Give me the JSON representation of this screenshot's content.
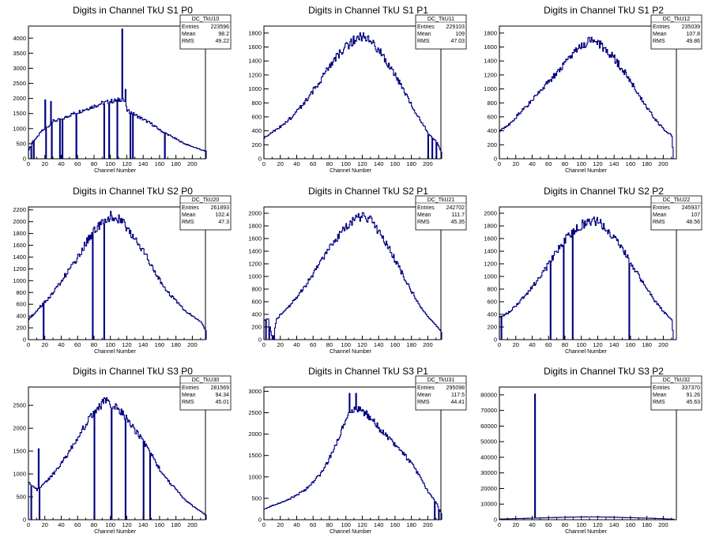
{
  "xlabel": "Channel Number",
  "stat_labels": {
    "entries": "Entries",
    "mean": "Mean",
    "rms": "RMS"
  },
  "line_color": "#000080",
  "chart_data": [
    {
      "type": "bar",
      "title": "Digits in Channel TkU S1 P0",
      "stat_name": "DC_TkU10",
      "entries": "223596",
      "mean": "98.2",
      "rms": "49.22",
      "xlim": [
        0,
        216
      ],
      "ylim": [
        0,
        4400
      ],
      "xticks": [
        0,
        20,
        40,
        60,
        80,
        100,
        120,
        140,
        160,
        180,
        200
      ],
      "yticks": [
        0,
        500,
        1000,
        1500,
        2000,
        2500,
        3000,
        3500,
        4000
      ],
      "anchors": [
        [
          0,
          300
        ],
        [
          5,
          600
        ],
        [
          10,
          700
        ],
        [
          15,
          900
        ],
        [
          20,
          1000
        ],
        [
          25,
          1100
        ],
        [
          30,
          1250
        ],
        [
          40,
          1300
        ],
        [
          50,
          1450
        ],
        [
          60,
          1550
        ],
        [
          70,
          1650
        ],
        [
          80,
          1750
        ],
        [
          90,
          1850
        ],
        [
          100,
          1900
        ],
        [
          110,
          1950
        ],
        [
          115,
          2000
        ],
        [
          120,
          1600
        ],
        [
          130,
          1450
        ],
        [
          140,
          1300
        ],
        [
          150,
          1150
        ],
        [
          160,
          950
        ],
        [
          170,
          800
        ],
        [
          180,
          650
        ],
        [
          190,
          500
        ],
        [
          200,
          400
        ],
        [
          210,
          300
        ],
        [
          216,
          250
        ]
      ],
      "spikes": [
        [
          3,
          0
        ],
        [
          6,
          0
        ],
        [
          20,
          1950
        ],
        [
          21,
          0
        ],
        [
          27,
          1900
        ],
        [
          28,
          0
        ],
        [
          38,
          0
        ],
        [
          41,
          0
        ],
        [
          58,
          0
        ],
        [
          92,
          0
        ],
        [
          98,
          0
        ],
        [
          108,
          0
        ],
        [
          114,
          4300
        ],
        [
          118,
          2300
        ],
        [
          124,
          0
        ],
        [
          127,
          0
        ],
        [
          166,
          0
        ]
      ]
    },
    {
      "type": "bar",
      "title": "Digits in Channel TkU S1 P1",
      "stat_name": "DC_TkU11",
      "entries": "229103",
      "mean": "109",
      "rms": "47.03",
      "xlim": [
        0,
        216
      ],
      "ylim": [
        0,
        1900
      ],
      "xticks": [
        0,
        20,
        40,
        60,
        80,
        100,
        120,
        140,
        160,
        180,
        200
      ],
      "yticks": [
        0,
        200,
        400,
        600,
        800,
        1000,
        1200,
        1400,
        1600,
        1800
      ],
      "anchors": [
        [
          0,
          300
        ],
        [
          10,
          380
        ],
        [
          20,
          460
        ],
        [
          30,
          560
        ],
        [
          40,
          680
        ],
        [
          50,
          820
        ],
        [
          60,
          980
        ],
        [
          70,
          1150
        ],
        [
          80,
          1330
        ],
        [
          90,
          1480
        ],
        [
          100,
          1600
        ],
        [
          110,
          1700
        ],
        [
          120,
          1760
        ],
        [
          130,
          1700
        ],
        [
          140,
          1550
        ],
        [
          150,
          1380
        ],
        [
          160,
          1200
        ],
        [
          170,
          980
        ],
        [
          180,
          760
        ],
        [
          190,
          560
        ],
        [
          200,
          370
        ],
        [
          210,
          250
        ],
        [
          216,
          100
        ]
      ],
      "spikes": [
        [
          200,
          0
        ],
        [
          205,
          0
        ],
        [
          210,
          0
        ]
      ]
    },
    {
      "type": "bar",
      "title": "Digits in Channel TkU S1 P2",
      "stat_name": "DC_TkU12",
      "entries": "235039",
      "mean": "107.8",
      "rms": "49.86",
      "xlim": [
        0,
        216
      ],
      "ylim": [
        0,
        1900
      ],
      "xticks": [
        0,
        20,
        40,
        60,
        80,
        100,
        120,
        140,
        160,
        180,
        200
      ],
      "yticks": [
        0,
        200,
        400,
        600,
        800,
        1000,
        1200,
        1400,
        1600,
        1800
      ],
      "anchors": [
        [
          0,
          400
        ],
        [
          10,
          480
        ],
        [
          20,
          600
        ],
        [
          30,
          720
        ],
        [
          40,
          850
        ],
        [
          50,
          980
        ],
        [
          60,
          1100
        ],
        [
          70,
          1230
        ],
        [
          80,
          1370
        ],
        [
          90,
          1500
        ],
        [
          100,
          1620
        ],
        [
          110,
          1680
        ],
        [
          120,
          1650
        ],
        [
          130,
          1560
        ],
        [
          140,
          1430
        ],
        [
          150,
          1280
        ],
        [
          160,
          1100
        ],
        [
          170,
          900
        ],
        [
          180,
          720
        ],
        [
          190,
          560
        ],
        [
          200,
          430
        ],
        [
          205,
          380
        ],
        [
          210,
          330
        ],
        [
          212,
          0
        ]
      ],
      "spikes": []
    },
    {
      "type": "bar",
      "title": "Digits in Channel TkU S2 P0",
      "stat_name": "DC_TkU20",
      "entries": "261893",
      "mean": "102.4",
      "rms": "47.3",
      "xlim": [
        0,
        216
      ],
      "ylim": [
        0,
        2250
      ],
      "xticks": [
        0,
        20,
        40,
        60,
        80,
        100,
        120,
        140,
        160,
        180,
        200
      ],
      "yticks": [
        0,
        200,
        400,
        600,
        800,
        1000,
        1200,
        1400,
        1600,
        1800,
        2000,
        2200
      ],
      "anchors": [
        [
          0,
          350
        ],
        [
          10,
          500
        ],
        [
          20,
          650
        ],
        [
          30,
          800
        ],
        [
          40,
          1000
        ],
        [
          50,
          1200
        ],
        [
          60,
          1400
        ],
        [
          70,
          1650
        ],
        [
          80,
          1850
        ],
        [
          90,
          2000
        ],
        [
          100,
          2100
        ],
        [
          110,
          2050
        ],
        [
          120,
          1900
        ],
        [
          130,
          1700
        ],
        [
          140,
          1500
        ],
        [
          150,
          1250
        ],
        [
          160,
          1000
        ],
        [
          170,
          800
        ],
        [
          180,
          650
        ],
        [
          190,
          500
        ],
        [
          200,
          400
        ],
        [
          210,
          300
        ],
        [
          216,
          150
        ]
      ],
      "spikes": [
        [
          18,
          0
        ],
        [
          78,
          0
        ],
        [
          92,
          0
        ]
      ]
    },
    {
      "type": "bar",
      "title": "Digits in Channel TkU S2 P1",
      "stat_name": "DC_TkU21",
      "entries": "242702",
      "mean": "111.7",
      "rms": "45.35",
      "xlim": [
        0,
        216
      ],
      "ylim": [
        0,
        2100
      ],
      "xticks": [
        0,
        20,
        40,
        60,
        80,
        100,
        120,
        140,
        160,
        180,
        200
      ],
      "yticks": [
        0,
        200,
        400,
        600,
        800,
        1000,
        1200,
        1400,
        1600,
        1800,
        2000
      ],
      "anchors": [
        [
          0,
          300
        ],
        [
          5,
          330
        ],
        [
          10,
          0
        ],
        [
          15,
          320
        ],
        [
          20,
          400
        ],
        [
          30,
          520
        ],
        [
          40,
          680
        ],
        [
          50,
          850
        ],
        [
          60,
          1050
        ],
        [
          70,
          1250
        ],
        [
          80,
          1450
        ],
        [
          90,
          1620
        ],
        [
          100,
          1780
        ],
        [
          110,
          1900
        ],
        [
          120,
          1960
        ],
        [
          130,
          1880
        ],
        [
          140,
          1720
        ],
        [
          150,
          1500
        ],
        [
          160,
          1250
        ],
        [
          170,
          1000
        ],
        [
          180,
          760
        ],
        [
          190,
          540
        ],
        [
          200,
          360
        ],
        [
          210,
          220
        ],
        [
          216,
          120
        ]
      ],
      "spikes": [
        [
          2,
          0
        ],
        [
          6,
          0
        ],
        [
          12,
          0
        ]
      ]
    },
    {
      "type": "bar",
      "title": "Digits in Channel TkU S2 P2",
      "stat_name": "DC_TkU22",
      "entries": "245937",
      "mean": "107",
      "rms": "48.56",
      "xlim": [
        0,
        216
      ],
      "ylim": [
        0,
        2100
      ],
      "xticks": [
        0,
        20,
        40,
        60,
        80,
        100,
        120,
        140,
        160,
        180,
        200
      ],
      "yticks": [
        0,
        200,
        400,
        600,
        800,
        1000,
        1200,
        1400,
        1600,
        1800,
        2000
      ],
      "anchors": [
        [
          0,
          350
        ],
        [
          10,
          420
        ],
        [
          20,
          540
        ],
        [
          30,
          680
        ],
        [
          40,
          840
        ],
        [
          50,
          1000
        ],
        [
          60,
          1200
        ],
        [
          70,
          1400
        ],
        [
          80,
          1580
        ],
        [
          90,
          1720
        ],
        [
          100,
          1820
        ],
        [
          110,
          1880
        ],
        [
          120,
          1860
        ],
        [
          130,
          1760
        ],
        [
          140,
          1600
        ],
        [
          150,
          1420
        ],
        [
          160,
          1220
        ],
        [
          170,
          1000
        ],
        [
          180,
          800
        ],
        [
          190,
          600
        ],
        [
          200,
          440
        ],
        [
          205,
          380
        ],
        [
          210,
          300
        ],
        [
          212,
          0
        ]
      ],
      "spikes": [
        [
          2,
          0
        ],
        [
          62,
          0
        ],
        [
          78,
          0
        ],
        [
          89,
          0
        ],
        [
          158,
          0
        ]
      ]
    },
    {
      "type": "bar",
      "title": "Digits in Channel TkU S3 P0",
      "stat_name": "DC_TkU30",
      "entries": "281569",
      "mean": "94.34",
      "rms": "45.01",
      "xlim": [
        0,
        216
      ],
      "ylim": [
        0,
        2900
      ],
      "xticks": [
        0,
        20,
        40,
        60,
        80,
        100,
        120,
        140,
        160,
        180,
        200
      ],
      "yticks": [
        0,
        500,
        1000,
        1500,
        2000,
        2500
      ],
      "anchors": [
        [
          0,
          800
        ],
        [
          10,
          650
        ],
        [
          20,
          800
        ],
        [
          30,
          1000
        ],
        [
          40,
          1250
        ],
        [
          50,
          1500
        ],
        [
          60,
          1800
        ],
        [
          70,
          2100
        ],
        [
          80,
          2350
        ],
        [
          90,
          2550
        ],
        [
          95,
          2650
        ],
        [
          100,
          2550
        ],
        [
          110,
          2400
        ],
        [
          120,
          2200
        ],
        [
          130,
          1950
        ],
        [
          140,
          1700
        ],
        [
          150,
          1400
        ],
        [
          160,
          1100
        ],
        [
          170,
          850
        ],
        [
          180,
          650
        ],
        [
          190,
          450
        ],
        [
          200,
          300
        ],
        [
          210,
          180
        ],
        [
          216,
          100
        ]
      ],
      "spikes": [
        [
          3,
          0
        ],
        [
          12,
          1550
        ],
        [
          13,
          0
        ],
        [
          80,
          0
        ],
        [
          101,
          0
        ],
        [
          118,
          0
        ],
        [
          140,
          0
        ],
        [
          148,
          0
        ]
      ]
    },
    {
      "type": "bar",
      "title": "Digits in Channel TkU S3 P1",
      "stat_name": "DC_TkU31",
      "entries": "295098",
      "mean": "117.5",
      "rms": "44.41",
      "xlim": [
        0,
        216
      ],
      "ylim": [
        0,
        3100
      ],
      "xticks": [
        0,
        20,
        40,
        60,
        80,
        100,
        120,
        140,
        160,
        180,
        200
      ],
      "yticks": [
        0,
        500,
        1000,
        1500,
        2000,
        2500,
        3000
      ],
      "anchors": [
        [
          0,
          250
        ],
        [
          10,
          330
        ],
        [
          20,
          400
        ],
        [
          30,
          480
        ],
        [
          40,
          580
        ],
        [
          50,
          700
        ],
        [
          60,
          880
        ],
        [
          70,
          1100
        ],
        [
          80,
          1450
        ],
        [
          90,
          1900
        ],
        [
          100,
          2400
        ],
        [
          110,
          2600
        ],
        [
          120,
          2550
        ],
        [
          130,
          2350
        ],
        [
          140,
          2150
        ],
        [
          150,
          1950
        ],
        [
          160,
          1750
        ],
        [
          170,
          1550
        ],
        [
          180,
          1300
        ],
        [
          190,
          1000
        ],
        [
          200,
          650
        ],
        [
          210,
          400
        ],
        [
          216,
          150
        ]
      ],
      "spikes": [
        [
          104,
          2950
        ],
        [
          112,
          2950
        ],
        [
          208,
          0
        ],
        [
          213,
          0
        ]
      ]
    },
    {
      "type": "bar",
      "title": "Digits in Channel TkU S3 P2",
      "stat_name": "DC_TkU32",
      "entries": "337370",
      "mean": "91.26",
      "rms": "45.63",
      "xlim": [
        0,
        216
      ],
      "ylim": [
        0,
        85000
      ],
      "xticks": [
        0,
        20,
        40,
        60,
        80,
        100,
        120,
        140,
        160,
        180,
        200
      ],
      "yticks": [
        0,
        10000,
        20000,
        30000,
        40000,
        50000,
        60000,
        70000,
        80000
      ],
      "anchors": [
        [
          0,
          400
        ],
        [
          20,
          700
        ],
        [
          40,
          1000
        ],
        [
          60,
          1300
        ],
        [
          80,
          1600
        ],
        [
          100,
          1800
        ],
        [
          120,
          1800
        ],
        [
          140,
          1600
        ],
        [
          160,
          1300
        ],
        [
          180,
          1000
        ],
        [
          200,
          650
        ],
        [
          212,
          300
        ]
      ],
      "spikes": [
        [
          43,
          80500
        ]
      ]
    }
  ]
}
